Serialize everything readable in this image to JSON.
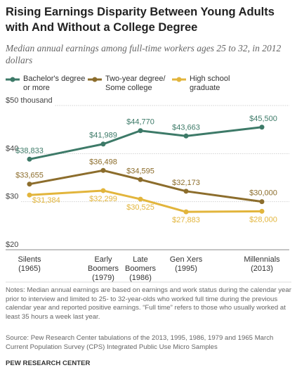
{
  "chart_data": {
    "type": "line",
    "title": "Rising Earnings Disparity Between Young Adults with And Without a College Degree",
    "subtitle": "Median annual earnings among full-time workers ages 25 to 32, in 2012 dollars",
    "categories": [
      "Silents\n(1965)",
      "Early\nBoomers\n(1979)",
      "Late\nBoomers\n(1986)",
      "Gen Xers\n(1995)",
      "Millennials\n(2013)"
    ],
    "series": [
      {
        "name": "Bachelor's degree or more",
        "color": "#3d7a68",
        "values": [
          38.833,
          41.989,
          44.77,
          43.663,
          45.5
        ],
        "value_labels": [
          "$38,833",
          "$41,989",
          "$44,770",
          "$43,663",
          "$45,500"
        ]
      },
      {
        "name": "Two-year degree/ Some college",
        "color": "#8c6d2c",
        "values": [
          33.655,
          36.498,
          34.595,
          32.173,
          30.0
        ],
        "value_labels": [
          "$33,655",
          "$36,498",
          "$34,595",
          "$32,173",
          "$30,000"
        ]
      },
      {
        "name": "High school graduate",
        "color": "#e2b53c",
        "values": [
          31.384,
          32.299,
          30.525,
          27.883,
          28.0
        ],
        "value_labels": [
          "$31,384",
          "$32,299",
          "$30,525",
          "$27,883",
          "$28,000"
        ]
      }
    ],
    "ylim": [
      20,
      50
    ],
    "yticks": [
      {
        "value": 20,
        "label": "$20"
      },
      {
        "value": 30,
        "label": "$30"
      },
      {
        "value": 40,
        "label": "$40"
      },
      {
        "value": 50,
        "label": "$50 thousand"
      }
    ],
    "grid": true,
    "notes": "Notes: Median annual earnings are based on earnings and work status during the calendar year prior to interview and limited to 25- to 32-year-olds who worked full time during the previous calendar year and reported positive earnings. “Full time” refers to those who usually worked at least 35 hours a week last year.",
    "source": "Source: Pew Research Center tabulations of the 2013, 1995, 1986, 1979 and 1965 March Current Population Survey (CPS) Integrated Public Use Micro Samples",
    "credit": "PEW RESEARCH CENTER"
  }
}
